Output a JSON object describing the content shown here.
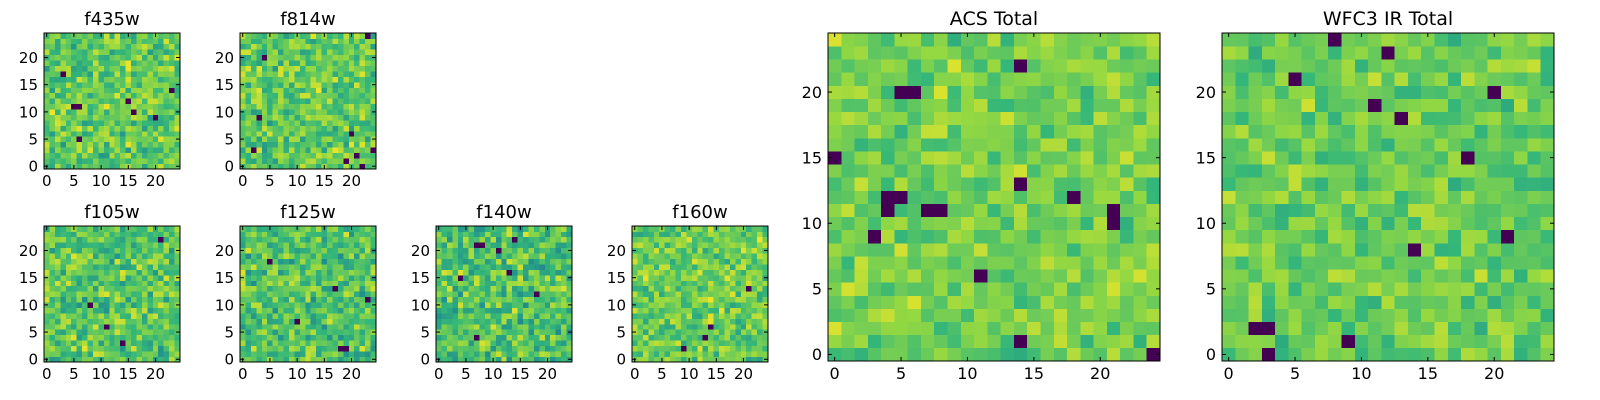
{
  "figure": {
    "background": "#ffffff"
  },
  "colormap": {
    "name": "viridis",
    "stops": [
      "#440154",
      "#31688e",
      "#21918c",
      "#35b779",
      "#90d743",
      "#fde725"
    ]
  },
  "chart_data": [
    {
      "type": "heatmap",
      "id": "f435w",
      "title": "f435w",
      "grid": false,
      "xlim": [
        -0.5,
        24.5
      ],
      "ylim": [
        -0.5,
        24.5
      ],
      "xticks": [
        0,
        5,
        10,
        15,
        20
      ],
      "yticks": [
        0,
        5,
        10,
        15,
        20
      ],
      "size": 25,
      "seed": 11,
      "mean": 0.7,
      "spread": 0.28,
      "dark_pixels": [
        [
          3,
          17
        ],
        [
          5,
          11
        ],
        [
          6,
          11
        ],
        [
          15,
          12
        ],
        [
          16,
          10
        ],
        [
          6,
          5
        ],
        [
          20,
          9
        ],
        [
          23,
          14
        ]
      ]
    },
    {
      "type": "heatmap",
      "id": "f814w",
      "title": "f814w",
      "grid": false,
      "xlim": [
        -0.5,
        24.5
      ],
      "ylim": [
        -0.5,
        24.5
      ],
      "xticks": [
        0,
        5,
        10,
        15,
        20
      ],
      "yticks": [
        0,
        5,
        10,
        15,
        20
      ],
      "size": 25,
      "seed": 23,
      "mean": 0.7,
      "spread": 0.28,
      "dark_pixels": [
        [
          23,
          24
        ],
        [
          20,
          6
        ],
        [
          19,
          1
        ],
        [
          21,
          2
        ],
        [
          22,
          0
        ],
        [
          3,
          9
        ],
        [
          2,
          3
        ],
        [
          24,
          3
        ],
        [
          4,
          20
        ]
      ]
    },
    {
      "type": "heatmap",
      "id": "f105w",
      "title": "f105w",
      "grid": false,
      "xlim": [
        -0.5,
        24.5
      ],
      "ylim": [
        -0.5,
        24.5
      ],
      "xticks": [
        0,
        5,
        10,
        15,
        20
      ],
      "yticks": [
        0,
        5,
        10,
        15,
        20
      ],
      "size": 25,
      "seed": 37,
      "mean": 0.68,
      "spread": 0.3,
      "dark_pixels": [
        [
          21,
          22
        ],
        [
          8,
          10
        ],
        [
          11,
          6
        ],
        [
          14,
          3
        ]
      ]
    },
    {
      "type": "heatmap",
      "id": "f125w",
      "title": "f125w",
      "grid": false,
      "xlim": [
        -0.5,
        24.5
      ],
      "ylim": [
        -0.5,
        24.5
      ],
      "xticks": [
        0,
        5,
        10,
        15,
        20
      ],
      "yticks": [
        0,
        5,
        10,
        15,
        20
      ],
      "size": 25,
      "seed": 51,
      "mean": 0.66,
      "spread": 0.3,
      "dark_pixels": [
        [
          23,
          11
        ],
        [
          17,
          13
        ],
        [
          18,
          2
        ],
        [
          19,
          2
        ],
        [
          10,
          7
        ],
        [
          5,
          18
        ]
      ]
    },
    {
      "type": "heatmap",
      "id": "f140w",
      "title": "f140w",
      "grid": false,
      "xlim": [
        -0.5,
        24.5
      ],
      "ylim": [
        -0.5,
        24.5
      ],
      "xticks": [
        0,
        5,
        10,
        15,
        20
      ],
      "yticks": [
        0,
        5,
        10,
        15,
        20
      ],
      "size": 25,
      "seed": 67,
      "mean": 0.66,
      "spread": 0.3,
      "dark_pixels": [
        [
          7,
          21
        ],
        [
          8,
          21
        ],
        [
          11,
          20
        ],
        [
          14,
          22
        ],
        [
          13,
          16
        ],
        [
          4,
          15
        ],
        [
          7,
          4
        ],
        [
          18,
          12
        ]
      ]
    },
    {
      "type": "heatmap",
      "id": "f160w",
      "title": "f160w",
      "grid": false,
      "xlim": [
        -0.5,
        24.5
      ],
      "ylim": [
        -0.5,
        24.5
      ],
      "xticks": [
        0,
        5,
        10,
        15,
        20
      ],
      "yticks": [
        0,
        5,
        10,
        15,
        20
      ],
      "size": 25,
      "seed": 83,
      "mean": 0.72,
      "spread": 0.26,
      "dark_pixels": [
        [
          14,
          6
        ],
        [
          13,
          4
        ],
        [
          9,
          2
        ],
        [
          21,
          13
        ]
      ]
    },
    {
      "type": "heatmap",
      "id": "acs-total",
      "title": "ACS Total",
      "grid": false,
      "xlim": [
        -0.5,
        24.5
      ],
      "ylim": [
        -0.5,
        24.5
      ],
      "xticks": [
        0,
        5,
        10,
        15,
        20
      ],
      "yticks": [
        0,
        5,
        10,
        15,
        20
      ],
      "size": 25,
      "seed": 97,
      "mean": 0.74,
      "spread": 0.2,
      "dark_pixels": [
        [
          5,
          20
        ],
        [
          6,
          20
        ],
        [
          4,
          12
        ],
        [
          5,
          12
        ],
        [
          4,
          11
        ],
        [
          7,
          11
        ],
        [
          8,
          11
        ],
        [
          3,
          9
        ],
        [
          21,
          11
        ],
        [
          14,
          13
        ],
        [
          18,
          12
        ],
        [
          21,
          10
        ],
        [
          14,
          1
        ],
        [
          0,
          15
        ],
        [
          14,
          22
        ],
        [
          24,
          0
        ],
        [
          11,
          6
        ]
      ]
    },
    {
      "type": "heatmap",
      "id": "wfc3-ir-total",
      "title": "WFC3 IR Total",
      "grid": false,
      "xlim": [
        -0.5,
        24.5
      ],
      "ylim": [
        -0.5,
        24.5
      ],
      "xticks": [
        0,
        5,
        10,
        15,
        20
      ],
      "yticks": [
        0,
        5,
        10,
        15,
        20
      ],
      "size": 25,
      "seed": 131,
      "mean": 0.72,
      "spread": 0.2,
      "dark_pixels": [
        [
          8,
          24
        ],
        [
          5,
          21
        ],
        [
          11,
          19
        ],
        [
          18,
          15
        ],
        [
          14,
          8
        ],
        [
          21,
          9
        ],
        [
          2,
          2
        ],
        [
          3,
          2
        ],
        [
          3,
          0
        ],
        [
          9,
          1
        ],
        [
          13,
          18
        ],
        [
          12,
          23
        ],
        [
          20,
          20
        ]
      ]
    }
  ]
}
